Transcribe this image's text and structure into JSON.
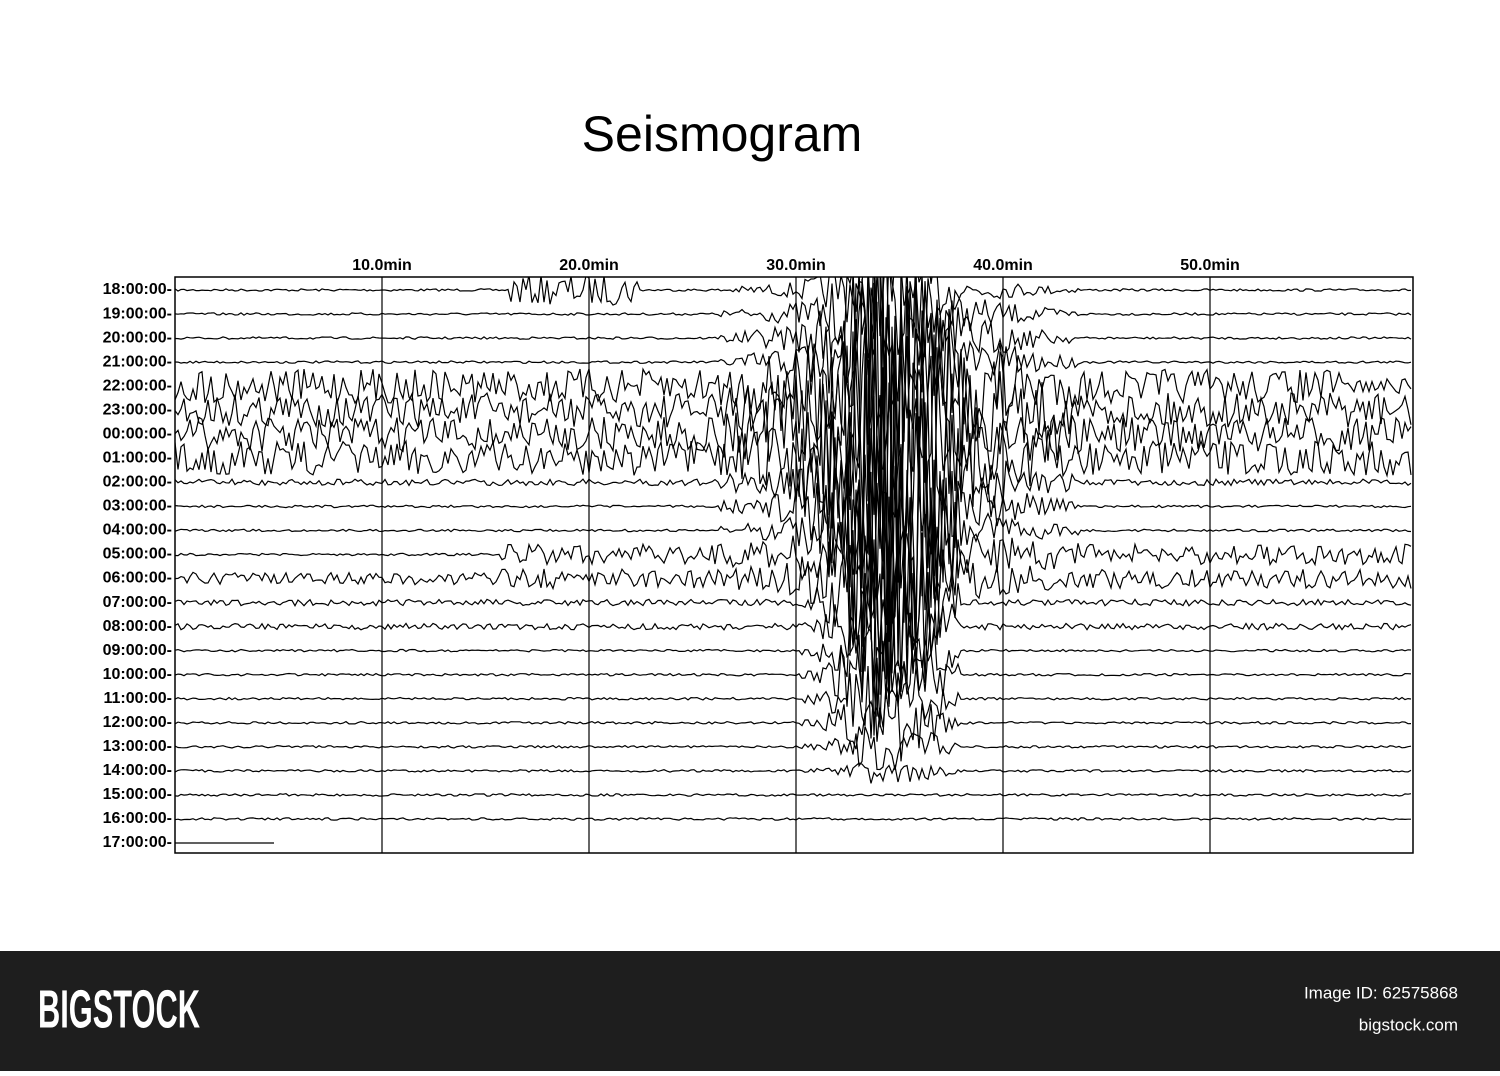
{
  "header": {
    "title": "Seismogram"
  },
  "time_ticks": [
    "10.0min",
    "20.0min",
    "30.0min",
    "40.0min",
    "50.0min"
  ],
  "rows": [
    "18:00:00-",
    "19:00:00-",
    "20:00:00-",
    "21:00:00-",
    "22:00:00-",
    "23:00:00-",
    "00:00:00-",
    "01:00:00-",
    "02:00:00-",
    "03:00:00-",
    "04:00:00-",
    "05:00:00-",
    "06:00:00-",
    "07:00:00-",
    "08:00:00-",
    "09:00:00-",
    "10:00:00-",
    "11:00:00-",
    "12:00:00-",
    "13:00:00-",
    "14:00:00-",
    "15:00:00-",
    "16:00:00-",
    "17:00:00-"
  ],
  "footer": {
    "logo": "BIGSTOCK",
    "image_id": "Image ID: 62575868",
    "site": "bigstock.com"
  }
}
